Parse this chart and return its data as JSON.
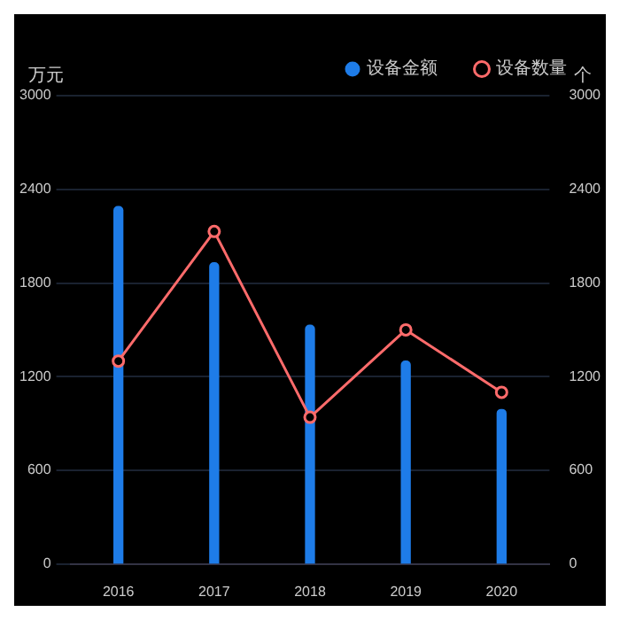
{
  "chart_data": {
    "type": "bar",
    "ylabel": "万元",
    "y2label": "个",
    "categories": [
      "2016",
      "2017",
      "2018",
      "2019",
      "2020"
    ],
    "series": [
      {
        "name": "设备金额",
        "color": "#1e7ce8",
        "values": [
          2290,
          1930,
          1530,
          1300,
          990
        ]
      },
      {
        "name": "设备数量",
        "type": "line",
        "axis": "y2",
        "color": "#ff6b6b",
        "values": [
          1300,
          2130,
          940,
          1500,
          1100
        ]
      }
    ],
    "ylim": [
      0,
      3000
    ],
    "yticks": [
      0,
      600,
      1200,
      1800,
      2400,
      3000
    ],
    "y2lim": [
      0,
      3000
    ],
    "y2ticks": [
      0,
      600,
      1200,
      1800,
      2400,
      3000
    ],
    "grid": "y",
    "legend": "top right",
    "marker": "circle",
    "line_style": "solid"
  }
}
